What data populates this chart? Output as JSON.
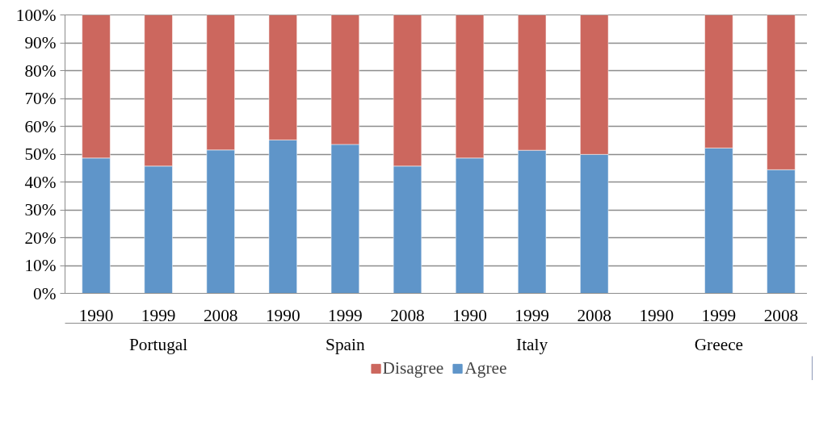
{
  "chart_data": {
    "type": "bar",
    "stacked": true,
    "categories": [
      "1990",
      "1999",
      "2008",
      "1990",
      "1999",
      "2008",
      "1990",
      "1999",
      "2008",
      "1990",
      "1999",
      "2008"
    ],
    "annotations": [
      "Portugal",
      "Spain",
      "Italy",
      "Greece"
    ],
    "series": [
      {
        "name": "Agree",
        "color": "#5f95c9",
        "values": [
          48.6,
          45.7,
          51.5,
          55.1,
          53.5,
          45.7,
          48.6,
          51.4,
          49.9,
          null,
          52.2,
          44.4
        ]
      },
      {
        "name": "Disagree",
        "color": "#cc675e",
        "values": [
          51.4,
          54.3,
          48.5,
          44.9,
          46.5,
          54.3,
          51.4,
          48.6,
          50.1,
          null,
          47.8,
          55.6
        ]
      }
    ],
    "ylim": [
      0,
      100
    ],
    "yticks": [
      {
        "value": 0,
        "label": "0%"
      },
      {
        "value": 10,
        "label": "10%"
      },
      {
        "value": 20,
        "label": "20%"
      },
      {
        "value": 30,
        "label": "30%"
      },
      {
        "value": 40,
        "label": "40%"
      },
      {
        "value": 50,
        "label": "50%"
      },
      {
        "value": 60,
        "label": "60%"
      },
      {
        "value": 70,
        "label": "70%"
      },
      {
        "value": 80,
        "label": "80%"
      },
      {
        "value": 90,
        "label": "90%"
      },
      {
        "value": 100,
        "label": "100%"
      }
    ],
    "grid": "y",
    "legend": "bottom"
  }
}
